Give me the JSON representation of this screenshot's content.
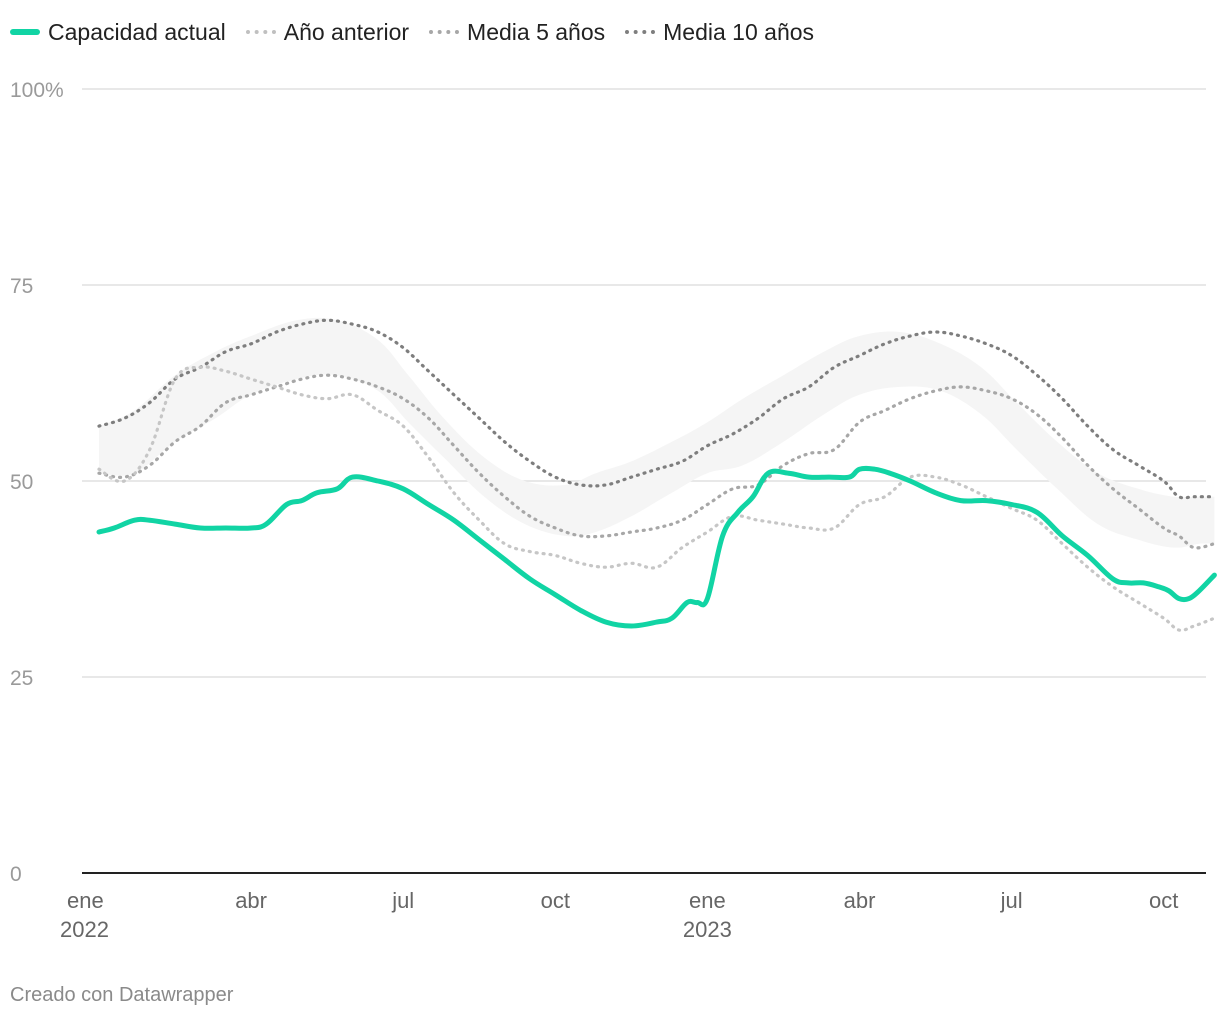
{
  "chart_data": {
    "type": "line",
    "title": "",
    "xlabel": "",
    "ylabel": "",
    "ylim": [
      0,
      100
    ],
    "yticks": [
      {
        "value": 0,
        "label": "0"
      },
      {
        "value": 25,
        "label": "25"
      },
      {
        "value": 50,
        "label": "50"
      },
      {
        "value": 75,
        "label": "75"
      },
      {
        "value": 100,
        "label": "100%"
      }
    ],
    "xlim": [
      0,
      22.5
    ],
    "xticks": [
      {
        "value": 0,
        "label": "ene",
        "sublabel": "2022"
      },
      {
        "value": 3,
        "label": "abr",
        "sublabel": ""
      },
      {
        "value": 6,
        "label": "jul",
        "sublabel": ""
      },
      {
        "value": 9,
        "label": "oct",
        "sublabel": ""
      },
      {
        "value": 12,
        "label": "ene",
        "sublabel": "2023"
      },
      {
        "value": 15,
        "label": "abr",
        "sublabel": ""
      },
      {
        "value": 18,
        "label": "jul",
        "sublabel": ""
      },
      {
        "value": 21,
        "label": "oct",
        "sublabel": ""
      }
    ],
    "x_unit": "months since January 2022",
    "band": {
      "name": "Rango Media 5 años - Media 10 años",
      "color": "#f5f5f5",
      "x": [
        0,
        0.7,
        1.5,
        2.3,
        3,
        3.9,
        4.7,
        5.5,
        6.1,
        6.8,
        7.6,
        8.4,
        9.2,
        9.8,
        10.5,
        11.3,
        12,
        12.7,
        13.5,
        14.3,
        15,
        15.8,
        16.6,
        17.4,
        18.1,
        18.9,
        19.7,
        20.5,
        21.2,
        21.7,
        22
      ],
      "lower": [
        51,
        51,
        55,
        58,
        61,
        63,
        63.5,
        61.5,
        57.5,
        53,
        48,
        44.5,
        43,
        43.5,
        45.5,
        48.5,
        51,
        52,
        55,
        58.5,
        61,
        62,
        61.5,
        58.5,
        54,
        49,
        44.5,
        42.5,
        41.5,
        42,
        42
      ],
      "upper": [
        57,
        59,
        63.5,
        66.5,
        68.5,
        70.5,
        70.5,
        68,
        63.5,
        58,
        53,
        50,
        49.5,
        51,
        52.5,
        55,
        57.5,
        60.5,
        63.5,
        66.5,
        68.5,
        69,
        67.5,
        64.5,
        60,
        55,
        51,
        49,
        48,
        48,
        48
      ]
    },
    "series": [
      {
        "name": "Media 10 años",
        "color": "#7e7e7e",
        "style": "dotted",
        "x": [
          0,
          0.5,
          1,
          1.5,
          2,
          2.5,
          3,
          3.5,
          4,
          4.5,
          5,
          5.5,
          6,
          6.5,
          7,
          7.5,
          8,
          8.5,
          9,
          9.5,
          10,
          10.5,
          11,
          11.5,
          12,
          12.5,
          13,
          13.5,
          14,
          14.5,
          15,
          15.5,
          16,
          16.5,
          17,
          17.5,
          18,
          18.5,
          19,
          19.5,
          20,
          20.5,
          21,
          21.3,
          21.6,
          22
        ],
        "values": [
          57,
          58,
          60,
          63,
          64.5,
          66.5,
          67.5,
          69,
          70,
          70.5,
          70,
          69,
          67,
          64,
          61,
          58,
          55,
          52.5,
          50.5,
          49.5,
          49.5,
          50.5,
          51.5,
          52.5,
          54.5,
          56,
          58,
          60.5,
          62,
          64.5,
          66,
          67.5,
          68.5,
          69,
          68.5,
          67.5,
          66,
          63.5,
          60.5,
          57,
          54,
          52,
          50,
          48,
          48,
          48
        ]
      },
      {
        "name": "Media 5 años",
        "color": "#a7a7a7",
        "style": "dotted",
        "x": [
          0,
          0.5,
          1,
          1.5,
          2,
          2.5,
          3,
          3.5,
          4,
          4.5,
          5,
          5.5,
          6,
          6.5,
          7,
          7.5,
          8,
          8.5,
          9,
          9.5,
          10,
          10.5,
          11,
          11.5,
          12,
          12.5,
          13,
          13.5,
          14,
          14.5,
          15,
          15.5,
          16,
          16.5,
          17,
          17.5,
          18,
          18.5,
          19,
          19.5,
          20,
          20.5,
          21,
          21.3,
          21.6,
          22
        ],
        "values": [
          51,
          50.5,
          52,
          55,
          57,
          60,
          61,
          62,
          63,
          63.5,
          63,
          62,
          60.5,
          58,
          54.5,
          51,
          48,
          45.5,
          44,
          43,
          43,
          43.5,
          44,
          45,
          47,
          49,
          49.5,
          52,
          53.5,
          54,
          57.5,
          59,
          60.5,
          61.5,
          62,
          61.5,
          60.5,
          58.5,
          55.5,
          52,
          49,
          46.5,
          44,
          43,
          41.5,
          42
        ]
      },
      {
        "name": "Año anterior",
        "color": "#c6c6c6",
        "style": "dotted",
        "x": [
          0,
          0.5,
          1,
          1.5,
          2,
          2.5,
          3,
          3.5,
          4,
          4.5,
          5,
          5.5,
          6,
          6.5,
          7,
          7.5,
          8,
          8.5,
          9,
          9.5,
          10,
          10.5,
          11,
          11.5,
          12,
          12.5,
          13,
          13.5,
          14,
          14.5,
          15,
          15.5,
          16,
          16.5,
          17,
          17.5,
          18,
          18.5,
          19,
          19.5,
          20,
          20.5,
          21,
          21.3,
          21.6,
          22
        ],
        "values": [
          51.5,
          50,
          54,
          63,
          64.5,
          64,
          63,
          62,
          61,
          60.5,
          61,
          59,
          57,
          53,
          48.5,
          45,
          42,
          41,
          40.5,
          39.5,
          39,
          39.5,
          39,
          41.5,
          43.5,
          45.5,
          45,
          44.5,
          44,
          44,
          47,
          48,
          50.5,
          50.5,
          49.5,
          48,
          46.5,
          45,
          42,
          39,
          36.5,
          34.5,
          32.5,
          31,
          31.5,
          32.5
        ]
      },
      {
        "name": "Capacidad actual",
        "color": "#11d4a4",
        "style": "solid",
        "x": [
          0,
          0.3,
          0.7,
          1,
          1.5,
          2,
          2.5,
          3,
          3.3,
          3.7,
          4,
          4.3,
          4.7,
          5,
          5.5,
          6,
          6.5,
          7,
          7.5,
          8,
          8.5,
          9,
          9.5,
          10,
          10.5,
          11,
          11.3,
          11.6,
          11.8,
          12,
          12.3,
          12.6,
          12.9,
          13.2,
          13.6,
          14,
          14.4,
          14.8,
          15,
          15.3,
          15.6,
          16,
          16.5,
          17,
          17.5,
          18,
          18.5,
          19,
          19.5,
          20,
          20.3,
          20.6,
          20.9,
          21.1,
          21.3,
          21.5,
          21.7,
          22
        ],
        "values": [
          43.5,
          44,
          45,
          45,
          44.5,
          44,
          44,
          44,
          44.5,
          47,
          47.5,
          48.5,
          49,
          50.5,
          50,
          49,
          47,
          45,
          42.5,
          40,
          37.5,
          35.5,
          33.5,
          32,
          31.5,
          32,
          32.5,
          34.5,
          34.5,
          35,
          43,
          46,
          48,
          51,
          51,
          50.5,
          50.5,
          50.5,
          51.5,
          51.5,
          51,
          50,
          48.5,
          47.5,
          47.5,
          47,
          46,
          43,
          40.5,
          37.5,
          37,
          37,
          36.5,
          36,
          35,
          35,
          36,
          38
        ]
      }
    ],
    "legend": {
      "placement": "top-left",
      "items": [
        "Capacidad actual",
        "Año anterior",
        "Media 5 años",
        "Media 10 años"
      ]
    },
    "source": "Creado con Datawrapper"
  },
  "colors": {
    "accent": "#11d4a4",
    "gridline": "#e0e0e0",
    "axis": "#222222",
    "tick_text": "#9a9a9a",
    "x_tick_text": "#666666"
  }
}
